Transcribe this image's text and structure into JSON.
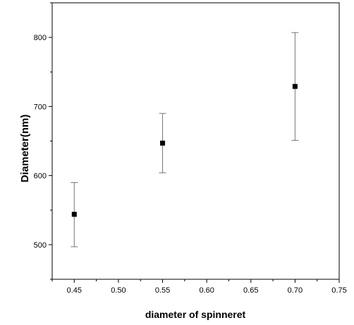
{
  "chart_data": {
    "type": "scatter",
    "xlabel": "diameter of spinneret",
    "ylabel": "Diameter(nm)",
    "xlim": [
      0.425,
      0.75
    ],
    "ylim": [
      450,
      850
    ],
    "x_ticks": [
      "0.45",
      "0.50",
      "0.55",
      "0.60",
      "0.65",
      "0.70",
      "0.75"
    ],
    "x_tick_values": [
      0.45,
      0.5,
      0.55,
      0.6,
      0.65,
      0.7,
      0.75
    ],
    "y_ticks": [
      "500",
      "600",
      "700",
      "800"
    ],
    "y_tick_values": [
      500,
      600,
      700,
      800
    ],
    "grid": false,
    "series": [
      {
        "marker": "square",
        "color": "#000000",
        "points": [
          {
            "x": 0.45,
            "y": 544,
            "err_low": 497,
            "err_high": 590
          },
          {
            "x": 0.55,
            "y": 647,
            "err_low": 604,
            "err_high": 690
          },
          {
            "x": 0.7,
            "y": 729,
            "err_low": 651,
            "err_high": 807
          }
        ]
      }
    ]
  }
}
